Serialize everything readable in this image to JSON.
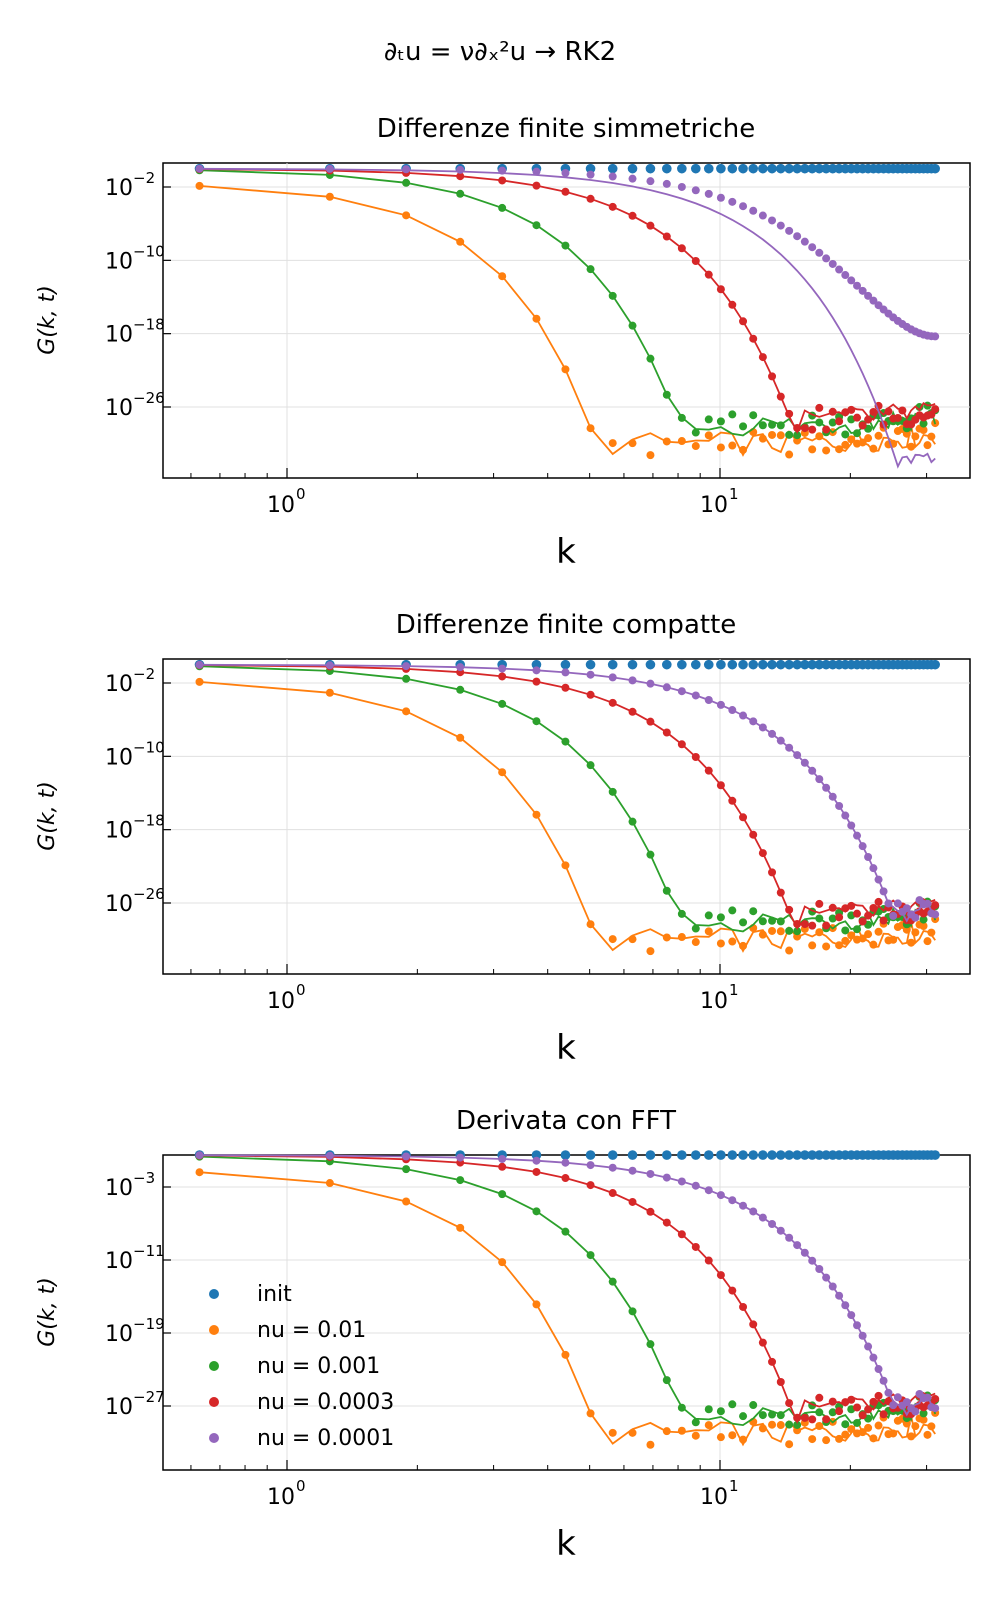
{
  "figure": {
    "suptitle": "∂ₜu = ν∂ₓ²u → RK2"
  },
  "legend": {
    "placement": "lower-left of third panel",
    "entries": [
      {
        "label": "init",
        "color": "#1f77b4"
      },
      {
        "label": "nu = 0.01",
        "color": "#ff7f0e"
      },
      {
        "label": "nu = 0.001",
        "color": "#2ca02c"
      },
      {
        "label": "nu = 0.0003",
        "color": "#d62728"
      },
      {
        "label": "nu = 0.0001",
        "color": "#9467bd"
      }
    ]
  },
  "chart_data": [
    {
      "type": "scatter",
      "title": "Differenze finite simmetriche",
      "xlabel": "k",
      "ylabel": "G(k, t)",
      "xscale": "log",
      "yscale": "log",
      "xlim": [
        0.5,
        40
      ],
      "ylim_exponent": [
        -34,
        1
      ],
      "x_ticks": [
        {
          "base": "10",
          "exp": "0",
          "value": 1
        },
        {
          "base": "10",
          "exp": "1",
          "value": 10
        }
      ],
      "y_ticks": [
        {
          "base": "10",
          "exp": "−2",
          "value": -2
        },
        {
          "base": "10",
          "exp": "−10",
          "value": -10
        },
        {
          "base": "10",
          "exp": "−18",
          "value": -18
        },
        {
          "base": "10",
          "exp": "−26",
          "value": -26
        }
      ],
      "grid": true,
      "k_range": [
        0.628,
        31.4
      ],
      "series": [
        {
          "name": "init",
          "color": "#1f77b4",
          "values": [
            {
              "k_max": 31.4,
              "log10_G": 0
            }
          ]
        },
        {
          "name": "nu = 0.01",
          "color": "#ff7f0e",
          "dots_log10_G": [
            -1.5,
            -7,
            -15.5,
            -27,
            -30.5,
            -31,
            -30.5,
            -32,
            -31,
            -30,
            -31,
            -30,
            -30.5,
            -31,
            -29.5,
            -30,
            -30.5,
            -29.5,
            -30
          ],
          "line_log10_G": [
            -1.5,
            -6.7,
            -15.2,
            -27.3,
            -30.3,
            -30.7,
            -30.9,
            -31.2,
            -31,
            -30.5,
            -30.2,
            -30,
            -29.8,
            -29.5,
            -29.2,
            -29
          ]
        },
        {
          "name": "nu = 0.001",
          "color": "#2ca02c",
          "points": [
            [
              0.628,
              0
            ],
            [
              1.257,
              -0.6
            ],
            [
              1.885,
              -1.6
            ],
            [
              2.513,
              -3
            ],
            [
              3.142,
              -4.8
            ],
            [
              3.77,
              -7
            ],
            [
              4.398,
              -9.6
            ],
            [
              5.027,
              -12.5
            ],
            [
              5.655,
              -15.8
            ],
            [
              6.283,
              -19.5
            ],
            [
              6.912,
              -23.4
            ],
            [
              7.54,
              -27.5
            ],
            [
              8.168,
              -28.5
            ],
            [
              9.425,
              -28
            ],
            [
              10.68,
              -27.5
            ],
            [
              12.57,
              -28
            ],
            [
              15.08,
              -28
            ],
            [
              20.1,
              -28
            ],
            [
              25.13,
              -27.5
            ],
            [
              31.4,
              -27
            ]
          ]
        },
        {
          "name": "nu = 0.0003",
          "color": "#d62728",
          "points": [
            [
              0.628,
              0
            ],
            [
              1.885,
              -0.5
            ],
            [
              3.142,
              -1.3
            ],
            [
              4.398,
              -2.6
            ],
            [
              5.655,
              -4.2
            ],
            [
              6.912,
              -6.2
            ],
            [
              8.168,
              -8.6
            ],
            [
              9.425,
              -11.4
            ],
            [
              10.68,
              -14.6
            ],
            [
              11.94,
              -18
            ],
            [
              13.19,
              -21.6
            ],
            [
              14.45,
              -25.4
            ],
            [
              15.71,
              -27.3
            ],
            [
              17.59,
              -27.5
            ],
            [
              20.1,
              -27.5
            ],
            [
              25.13,
              -27.2
            ],
            [
              31.4,
              -26.8
            ]
          ]
        },
        {
          "name": "nu = 0.0001",
          "color": "#9467bd",
          "points": [
            [
              0.628,
              0
            ],
            [
              3.142,
              -0.3
            ],
            [
              5.655,
              -1.2
            ],
            [
              8.168,
              -2.3
            ],
            [
              10.68,
              -3.8
            ],
            [
              13.19,
              -5.6
            ],
            [
              15.71,
              -7.8
            ],
            [
              18.22,
              -10.2
            ],
            [
              20.73,
              -12.8
            ],
            [
              23.25,
              -15.2
            ],
            [
              25.76,
              -17
            ],
            [
              28.27,
              -18
            ],
            [
              31.4,
              -18.3
            ]
          ]
        }
      ]
    },
    {
      "type": "scatter",
      "title": "Differenze finite compatte",
      "xlabel": "k",
      "ylabel": "G(k, t)",
      "xscale": "log",
      "yscale": "log",
      "xlim": [
        0.5,
        40
      ],
      "ylim_exponent": [
        -34,
        1
      ],
      "x_ticks": [
        {
          "base": "10",
          "exp": "0",
          "value": 1
        },
        {
          "base": "10",
          "exp": "1",
          "value": 10
        }
      ],
      "y_ticks": [
        {
          "base": "10",
          "exp": "−2",
          "value": -2
        },
        {
          "base": "10",
          "exp": "−10",
          "value": -10
        },
        {
          "base": "10",
          "exp": "−18",
          "value": -18
        },
        {
          "base": "10",
          "exp": "−26",
          "value": -26
        }
      ],
      "grid": true,
      "series": [
        {
          "name": "init",
          "color": "#1f77b4"
        },
        {
          "name": "nu = 0.01",
          "color": "#ff7f0e"
        },
        {
          "name": "nu = 0.001",
          "color": "#2ca02c"
        },
        {
          "name": "nu = 0.0003",
          "color": "#d62728"
        },
        {
          "name": "nu = 0.0001",
          "color": "#9467bd"
        }
      ]
    },
    {
      "type": "scatter",
      "title": "Derivata con FFT",
      "xlabel": "k",
      "ylabel": "G(k, t)",
      "xscale": "log",
      "yscale": "log",
      "xlim": [
        0.5,
        40
      ],
      "ylim_exponent": [
        -34,
        1
      ],
      "x_ticks": [
        {
          "base": "10",
          "exp": "0",
          "value": 1
        },
        {
          "base": "10",
          "exp": "1",
          "value": 10
        }
      ],
      "y_ticks": [
        {
          "base": "10",
          "exp": "−3",
          "value": -3
        },
        {
          "base": "10",
          "exp": "−11",
          "value": -11
        },
        {
          "base": "10",
          "exp": "−19",
          "value": -19
        },
        {
          "base": "10",
          "exp": "−27",
          "value": -27
        }
      ],
      "grid": true,
      "series": [
        {
          "name": "init",
          "color": "#1f77b4"
        },
        {
          "name": "nu = 0.01",
          "color": "#ff7f0e"
        },
        {
          "name": "nu = 0.001",
          "color": "#2ca02c"
        },
        {
          "name": "nu = 0.0003",
          "color": "#d62728"
        },
        {
          "name": "nu = 0.0001",
          "color": "#9467bd"
        }
      ]
    }
  ]
}
